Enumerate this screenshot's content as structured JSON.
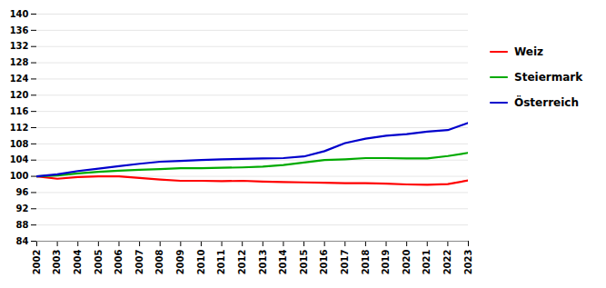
{
  "chart_data": {
    "type": "line",
    "x": [
      2002,
      2003,
      2004,
      2005,
      2006,
      2007,
      2008,
      2009,
      2010,
      2011,
      2012,
      2013,
      2014,
      2015,
      2016,
      2017,
      2018,
      2019,
      2020,
      2021,
      2022,
      2023
    ],
    "series": [
      {
        "name": "Weiz",
        "color": "#ff0000",
        "values": [
          100.0,
          99.4,
          99.8,
          100.0,
          100.0,
          99.6,
          99.2,
          98.9,
          98.9,
          98.8,
          98.9,
          98.7,
          98.6,
          98.5,
          98.4,
          98.3,
          98.3,
          98.2,
          98.0,
          97.9,
          98.1,
          99.0
        ]
      },
      {
        "name": "Steiermark",
        "color": "#00aa00",
        "values": [
          100.0,
          100.2,
          100.7,
          101.1,
          101.4,
          101.6,
          101.8,
          102.0,
          102.0,
          102.1,
          102.2,
          102.4,
          102.8,
          103.4,
          104.0,
          104.2,
          104.5,
          104.5,
          104.4,
          104.4,
          105.0,
          105.8
        ]
      },
      {
        "name": "Österreich",
        "color": "#0000cc",
        "values": [
          100.0,
          100.5,
          101.3,
          101.9,
          102.5,
          103.1,
          103.6,
          103.8,
          104.0,
          104.2,
          104.3,
          104.4,
          104.5,
          104.9,
          106.2,
          108.2,
          109.3,
          110.0,
          110.4,
          111.0,
          111.4,
          113.2
        ]
      }
    ],
    "xlim": [
      2002,
      2023
    ],
    "xticks": [
      2002,
      2003,
      2004,
      2005,
      2006,
      2007,
      2008,
      2009,
      2010,
      2011,
      2012,
      2013,
      2014,
      2015,
      2016,
      2017,
      2018,
      2019,
      2020,
      2021,
      2022,
      2023
    ],
    "ylim": [
      84,
      140
    ],
    "yticks": [
      84,
      88,
      92,
      96,
      100,
      104,
      108,
      112,
      116,
      120,
      124,
      128,
      132,
      136,
      140
    ],
    "grid": true,
    "legend": "right"
  }
}
